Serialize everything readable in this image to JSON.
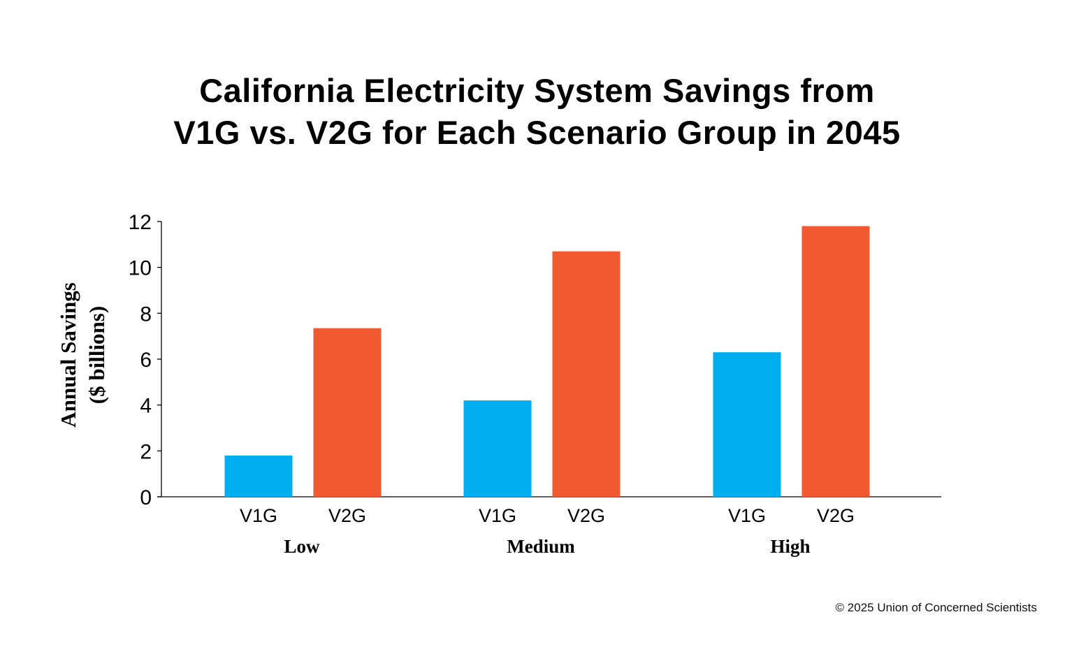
{
  "chart_data": {
    "type": "bar",
    "title_lines": [
      "California Electricity System Savings from",
      "V1G vs. V2G for Each Scenario Group in 2045"
    ],
    "ylabel_lines": [
      "Annual Savings",
      "($ billions)"
    ],
    "xlabel": "",
    "ylim": [
      0,
      12
    ],
    "yticks": [
      "0",
      "2",
      "4",
      "6",
      "8",
      "10",
      "12"
    ],
    "grid": false,
    "groups": [
      {
        "name": "Low",
        "bars": [
          {
            "label": "V1G",
            "value": 1.8
          },
          {
            "label": "V2G",
            "value": 7.35
          }
        ]
      },
      {
        "name": "Medium",
        "bars": [
          {
            "label": "V1G",
            "value": 4.2
          },
          {
            "label": "V2G",
            "value": 10.7
          }
        ]
      },
      {
        "name": "High",
        "bars": [
          {
            "label": "V1G",
            "value": 6.3
          },
          {
            "label": "V2G",
            "value": 11.8
          }
        ]
      }
    ],
    "series": [
      {
        "name": "V1G",
        "color": "#00AEEF",
        "values": [
          1.8,
          4.2,
          6.3
        ]
      },
      {
        "name": "V2G",
        "color": "#F15A31",
        "values": [
          7.35,
          10.7,
          11.8
        ]
      }
    ],
    "categories": [
      "Low",
      "Medium",
      "High"
    ]
  },
  "credit": "© 2025 Union of Concerned Scientists"
}
